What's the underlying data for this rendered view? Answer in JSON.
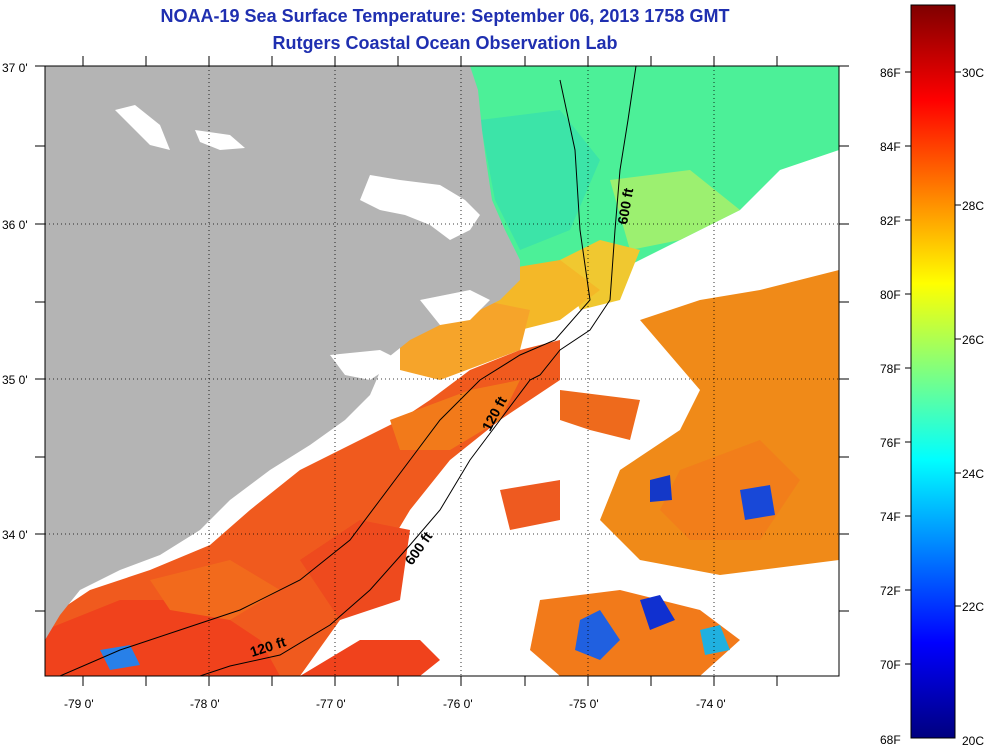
{
  "header": {
    "title": "NOAA-19 Sea Surface Temperature:  September 06, 2013 1758 GMT",
    "subtitle": "Rutgers Coastal Ocean Observation Lab"
  },
  "map": {
    "lat_ticks": [
      "37 0'",
      "36 0'",
      "35 0'",
      "34 0'"
    ],
    "lon_ticks": [
      "-79 0'",
      "-78 0'",
      "-77 0'",
      "-76 0'",
      "-75 0'",
      "-74 0'"
    ],
    "contours": [
      "600 ft",
      "120 ft",
      "600 ft",
      "120 ft"
    ]
  },
  "colorbar": {
    "fahrenheit": [
      "86F",
      "84F",
      "82F",
      "80F",
      "78F",
      "76F",
      "74F",
      "72F",
      "70F",
      "68F"
    ],
    "celsius": [
      "30C",
      "28C",
      "26C",
      "24C",
      "22C",
      "20C"
    ]
  },
  "colors": {
    "land": "#b4b4b4",
    "cloud": "#ffffff",
    "title": "#1f2fb0"
  }
}
